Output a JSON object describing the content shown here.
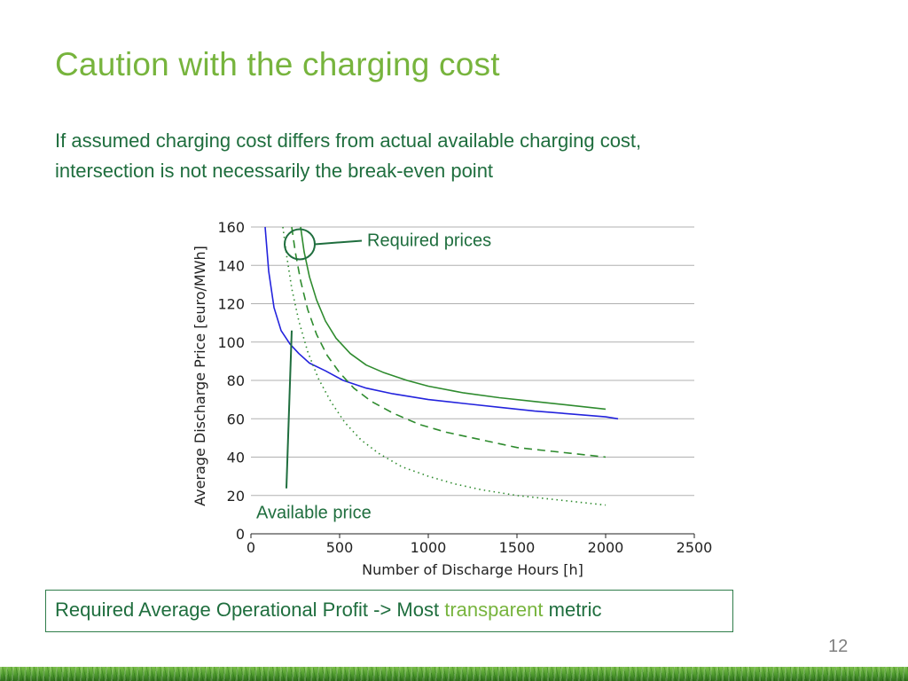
{
  "slide": {
    "title": "Caution with the charging cost",
    "subtitle_line1": "If assumed charging cost differs from actual available charging cost,",
    "subtitle_line2": "intersection is not necessarily the break-even point",
    "callout_prefix": "Required Average Operational Profit -> Most ",
    "callout_accent": "transparent",
    "callout_suffix": " metric",
    "page_number": "12"
  },
  "colors": {
    "title": "#77b43d",
    "text": "#1f6e3e",
    "available": "#2323dd",
    "required": "#2e8b2e",
    "grid": "#b0b0b0"
  },
  "chart_data": {
    "type": "line",
    "xlabel": "Number of Discharge Hours [h]",
    "ylabel": "Average Discharge Price [euro/MWh]",
    "xlim": [
      0,
      2500
    ],
    "ylim": [
      0,
      160
    ],
    "xticks": [
      0,
      500,
      1000,
      1500,
      2000,
      2500
    ],
    "yticks": [
      0,
      20,
      40,
      60,
      80,
      100,
      120,
      140,
      160
    ],
    "grid": "horizontal",
    "series": [
      {
        "style": "solid",
        "color": "#2323dd",
        "x": [
          80,
          100,
          130,
          170,
          220,
          270,
          330,
          420,
          520,
          650,
          800,
          1000,
          1200,
          1400,
          1600,
          1800,
          2000,
          2070
        ],
        "y": [
          160,
          137,
          118,
          106,
          99,
          94,
          89,
          85,
          80,
          76,
          73,
          70,
          68,
          66,
          64,
          62.5,
          61,
          60
        ]
      },
      {
        "style": "solid",
        "color": "#2e8b2e",
        "x": [
          280,
          300,
          330,
          370,
          420,
          480,
          560,
          650,
          750,
          880,
          1000,
          1200,
          1400,
          1600,
          1800,
          2000
        ],
        "y": [
          160,
          147,
          134,
          122,
          111,
          102,
          94,
          88,
          84,
          80,
          77,
          73.5,
          71,
          69,
          67,
          65
        ]
      },
      {
        "style": "dashed",
        "color": "#2e8b2e",
        "x": [
          230,
          250,
          280,
          320,
          370,
          430,
          500,
          580,
          680,
          800,
          950,
          1100,
          1300,
          1500,
          1700,
          1900,
          2000
        ],
        "y": [
          160,
          147,
          132,
          117,
          104,
          93,
          84,
          76,
          69,
          63,
          57,
          53,
          49,
          45,
          43,
          41,
          40
        ]
      },
      {
        "style": "dotted",
        "color": "#2e8b2e",
        "x": [
          180,
          200,
          230,
          270,
          320,
          380,
          450,
          530,
          620,
          720,
          850,
          1000,
          1150,
          1300,
          1500,
          1700,
          1900,
          2000
        ],
        "y": [
          160,
          146,
          128,
          111,
          95,
          81,
          69,
          58,
          49,
          42,
          35,
          30,
          26,
          23,
          20,
          18,
          16,
          15
        ]
      }
    ],
    "annotations": [
      {
        "text": "Required prices",
        "target_x": 275,
        "target_y": 151
      },
      {
        "text": "Available price",
        "target_x": 210,
        "target_y": 106
      }
    ]
  }
}
